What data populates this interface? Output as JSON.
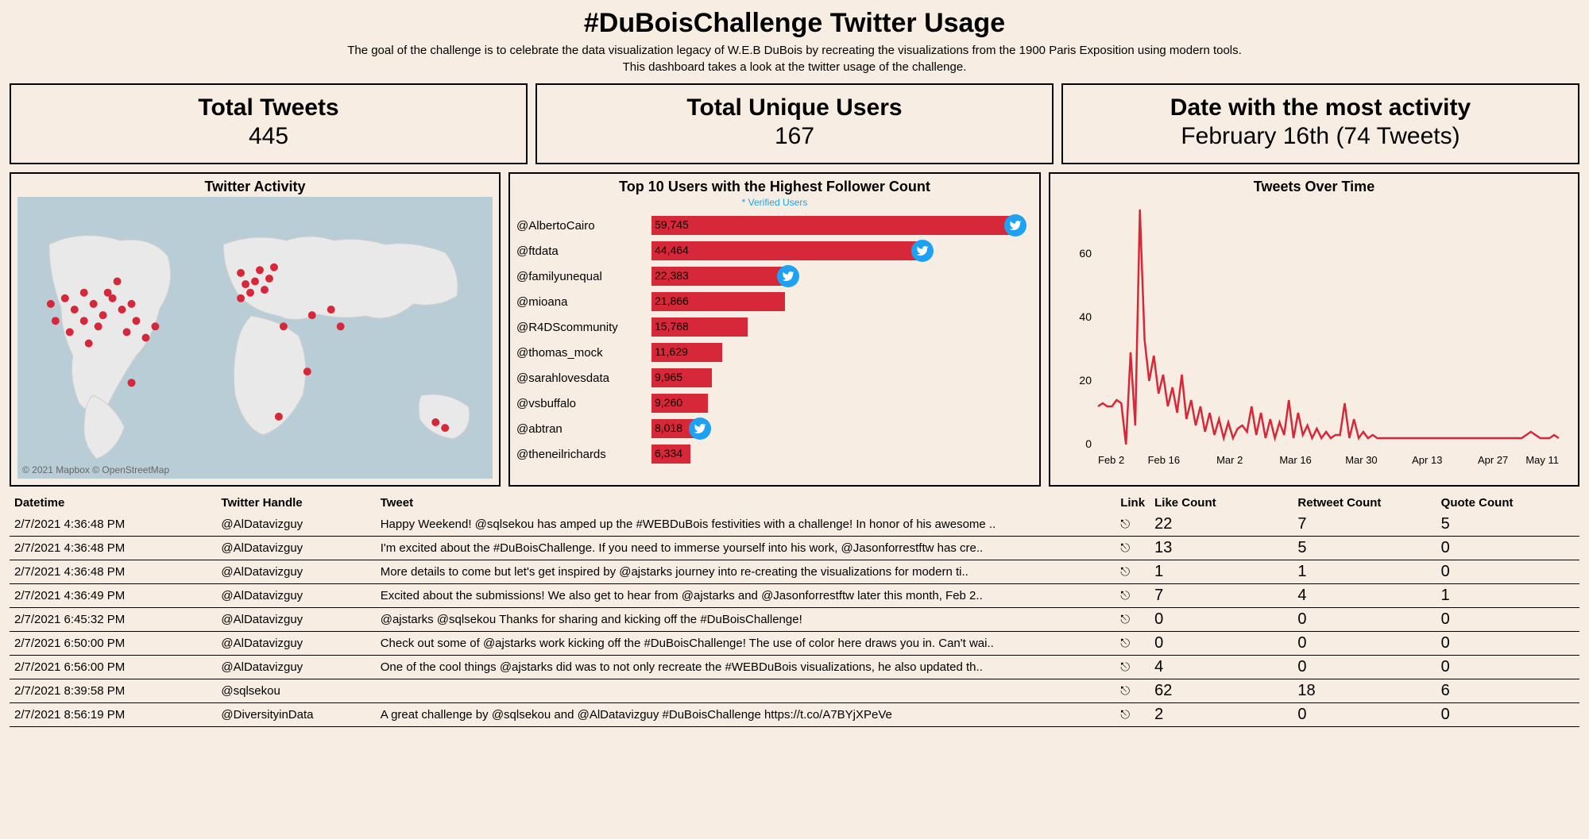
{
  "header": {
    "title": "#DuBoisChallenge Twitter Usage",
    "subtitle1": "The goal of the challenge is to celebrate the data visualization legacy of W.E.B DuBois by recreating the visualizations from the 1900 Paris Exposition using modern tools.",
    "subtitle2": "This dashboard takes a look at the twitter usage of the challenge."
  },
  "colors": {
    "background": "#f7ede2",
    "accent": "#d62839",
    "verified": "#1da1f2",
    "border": "#000000",
    "land": "#e9e9e9",
    "sea": "#b8cdd5",
    "landStroke": "#cfcfcf"
  },
  "kpis": [
    {
      "title": "Total Tweets",
      "value": "445"
    },
    {
      "title": "Total Unique Users",
      "value": "167"
    },
    {
      "title": "Date with the most activity",
      "value": "February 16th (74 Tweets)"
    }
  ],
  "mapPanel": {
    "title": "Twitter Activity",
    "attribution": "© 2021 Mapbox  © OpenStreetMap",
    "points": [
      [
        10,
        36
      ],
      [
        12,
        40
      ],
      [
        14,
        44
      ],
      [
        8,
        44
      ],
      [
        16,
        38
      ],
      [
        18,
        42
      ],
      [
        20,
        36
      ],
      [
        22,
        40
      ],
      [
        17,
        46
      ],
      [
        14,
        34
      ],
      [
        19,
        34
      ],
      [
        24,
        38
      ],
      [
        7,
        38
      ],
      [
        11,
        48
      ],
      [
        21,
        30
      ],
      [
        15,
        52
      ],
      [
        25,
        44
      ],
      [
        23,
        48
      ],
      [
        27,
        50
      ],
      [
        29,
        46
      ],
      [
        24,
        66
      ],
      [
        47,
        27
      ],
      [
        48,
        31
      ],
      [
        50,
        30
      ],
      [
        51,
        26
      ],
      [
        52,
        33
      ],
      [
        53,
        29
      ],
      [
        54,
        25
      ],
      [
        49,
        34
      ],
      [
        47,
        36
      ],
      [
        55,
        78
      ],
      [
        56,
        46
      ],
      [
        62,
        42
      ],
      [
        66,
        40
      ],
      [
        68,
        46
      ],
      [
        61,
        62
      ],
      [
        88,
        80
      ],
      [
        90,
        82
      ]
    ],
    "dotRadius": 5
  },
  "barChart": {
    "title": "Top 10 Users with the Highest Follower Count",
    "subtitle": "* Verified Users",
    "maxValue": 60000,
    "barColor": "#d62839",
    "rows": [
      {
        "label": "@AlbertoCairo",
        "value": 59745,
        "display": "59,745",
        "verified": true
      },
      {
        "label": "@ftdata",
        "value": 44464,
        "display": "44,464",
        "verified": true
      },
      {
        "label": "@familyunequal",
        "value": 22383,
        "display": "22,383",
        "verified": true
      },
      {
        "label": "@mioana",
        "value": 21866,
        "display": "21,866",
        "verified": false
      },
      {
        "label": "@R4DScommunity",
        "value": 15768,
        "display": "15,768",
        "verified": false
      },
      {
        "label": "@thomas_mock",
        "value": 11629,
        "display": "11,629",
        "verified": false
      },
      {
        "label": "@sarahlovesdata",
        "value": 9965,
        "display": "9,965",
        "verified": false
      },
      {
        "label": "@vsbuffalo",
        "value": 9260,
        "display": "9,260",
        "verified": false
      },
      {
        "label": "@abtran",
        "value": 8018,
        "display": "8,018",
        "verified": true
      },
      {
        "label": "@theneilrichards",
        "value": 6334,
        "display": "6,334",
        "verified": false
      }
    ]
  },
  "lineChart": {
    "title": "Tweets Over Time",
    "ylim": [
      0,
      75
    ],
    "yticks": [
      0,
      20,
      40,
      60
    ],
    "xticks": [
      "Feb 2",
      "Feb 16",
      "Mar 2",
      "Mar 16",
      "Mar 30",
      "Apr 13",
      "Apr 27",
      "May 11"
    ],
    "lineColor": "#d62839",
    "lineWidth": 2.5,
    "series": [
      12,
      13,
      12,
      12,
      14,
      13,
      0,
      29,
      6,
      74,
      33,
      20,
      28,
      16,
      22,
      12,
      18,
      10,
      22,
      8,
      14,
      6,
      12,
      4,
      10,
      3,
      8,
      2,
      7,
      2,
      5,
      6,
      4,
      12,
      3,
      10,
      2,
      8,
      2,
      7,
      3,
      14,
      2,
      10,
      3,
      6,
      2,
      5,
      2,
      4,
      2,
      3,
      3,
      13,
      2,
      8,
      2,
      4,
      2,
      3,
      2,
      2,
      2,
      2,
      2,
      2,
      2,
      2,
      2,
      2,
      2,
      2,
      2,
      2,
      2,
      2,
      2,
      2,
      2,
      2,
      2,
      2,
      2,
      2,
      2,
      2,
      2,
      2,
      2,
      2,
      2,
      2,
      3,
      4,
      3,
      2,
      2,
      2,
      3,
      2
    ]
  },
  "table": {
    "columns": [
      "Datetime",
      "Twitter Handle",
      "Tweet",
      "Link",
      "Like Count",
      "Retweet Count",
      "Quote Count"
    ],
    "rows": [
      {
        "dt": "2/7/2021 4:36:48 PM",
        "handle": "@AlDatavizguy",
        "tweet": "Happy Weekend! @sqlsekou has amped up the #WEBDuBois festivities with a challenge! In honor of his awesome ..",
        "link": "⎋",
        "like": "22",
        "rt": "7",
        "q": "5"
      },
      {
        "dt": "2/7/2021 4:36:48 PM",
        "handle": "@AlDatavizguy",
        "tweet": "I'm excited about the #DuBoisChallenge. If you need to immerse yourself into his work, @Jasonforrestftw has cre..",
        "link": "⎋",
        "like": "13",
        "rt": "5",
        "q": "0"
      },
      {
        "dt": "2/7/2021 4:36:48 PM",
        "handle": "@AlDatavizguy",
        "tweet": "More details to come but let's get inspired by @ajstarks journey into re-creating the visualizations for modern ti..",
        "link": "⎋",
        "like": "1",
        "rt": "1",
        "q": "0"
      },
      {
        "dt": "2/7/2021 4:36:49 PM",
        "handle": "@AlDatavizguy",
        "tweet": "Excited about the submissions! We also get to hear from @ajstarks and @Jasonforrestftw later this month, Feb 2..",
        "link": "⎋",
        "like": "7",
        "rt": "4",
        "q": "1"
      },
      {
        "dt": "2/7/2021 6:45:32 PM",
        "handle": "@AlDatavizguy",
        "tweet": "@ajstarks @sqlsekou Thanks for sharing and kicking off the #DuBoisChallenge!",
        "link": "⎋",
        "like": "0",
        "rt": "0",
        "q": "0"
      },
      {
        "dt": "2/7/2021 6:50:00 PM",
        "handle": "@AlDatavizguy",
        "tweet": "Check out some of @ajstarks work kicking off the #DuBoisChallenge! The use of color here draws you in. Can't wai..",
        "link": "⎋",
        "like": "0",
        "rt": "0",
        "q": "0"
      },
      {
        "dt": "2/7/2021 6:56:00 PM",
        "handle": "@AlDatavizguy",
        "tweet": "One of the cool things @ajstarks did was to not only recreate the #WEBDuBois visualizations, he also updated th..",
        "link": "⎋",
        "like": "4",
        "rt": "0",
        "q": "0"
      },
      {
        "dt": "2/7/2021 8:39:58 PM",
        "handle": "@sqlsekou",
        "tweet": "",
        "link": "⎋",
        "like": "62",
        "rt": "18",
        "q": "6"
      },
      {
        "dt": "2/7/2021 8:56:19 PM",
        "handle": "@DiversityinData",
        "tweet": "A great challenge by @sqlsekou and @AlDatavizguy #DuBoisChallenge https://t.co/A7BYjXPeVe",
        "link": "⎋",
        "like": "2",
        "rt": "0",
        "q": "0"
      }
    ]
  }
}
